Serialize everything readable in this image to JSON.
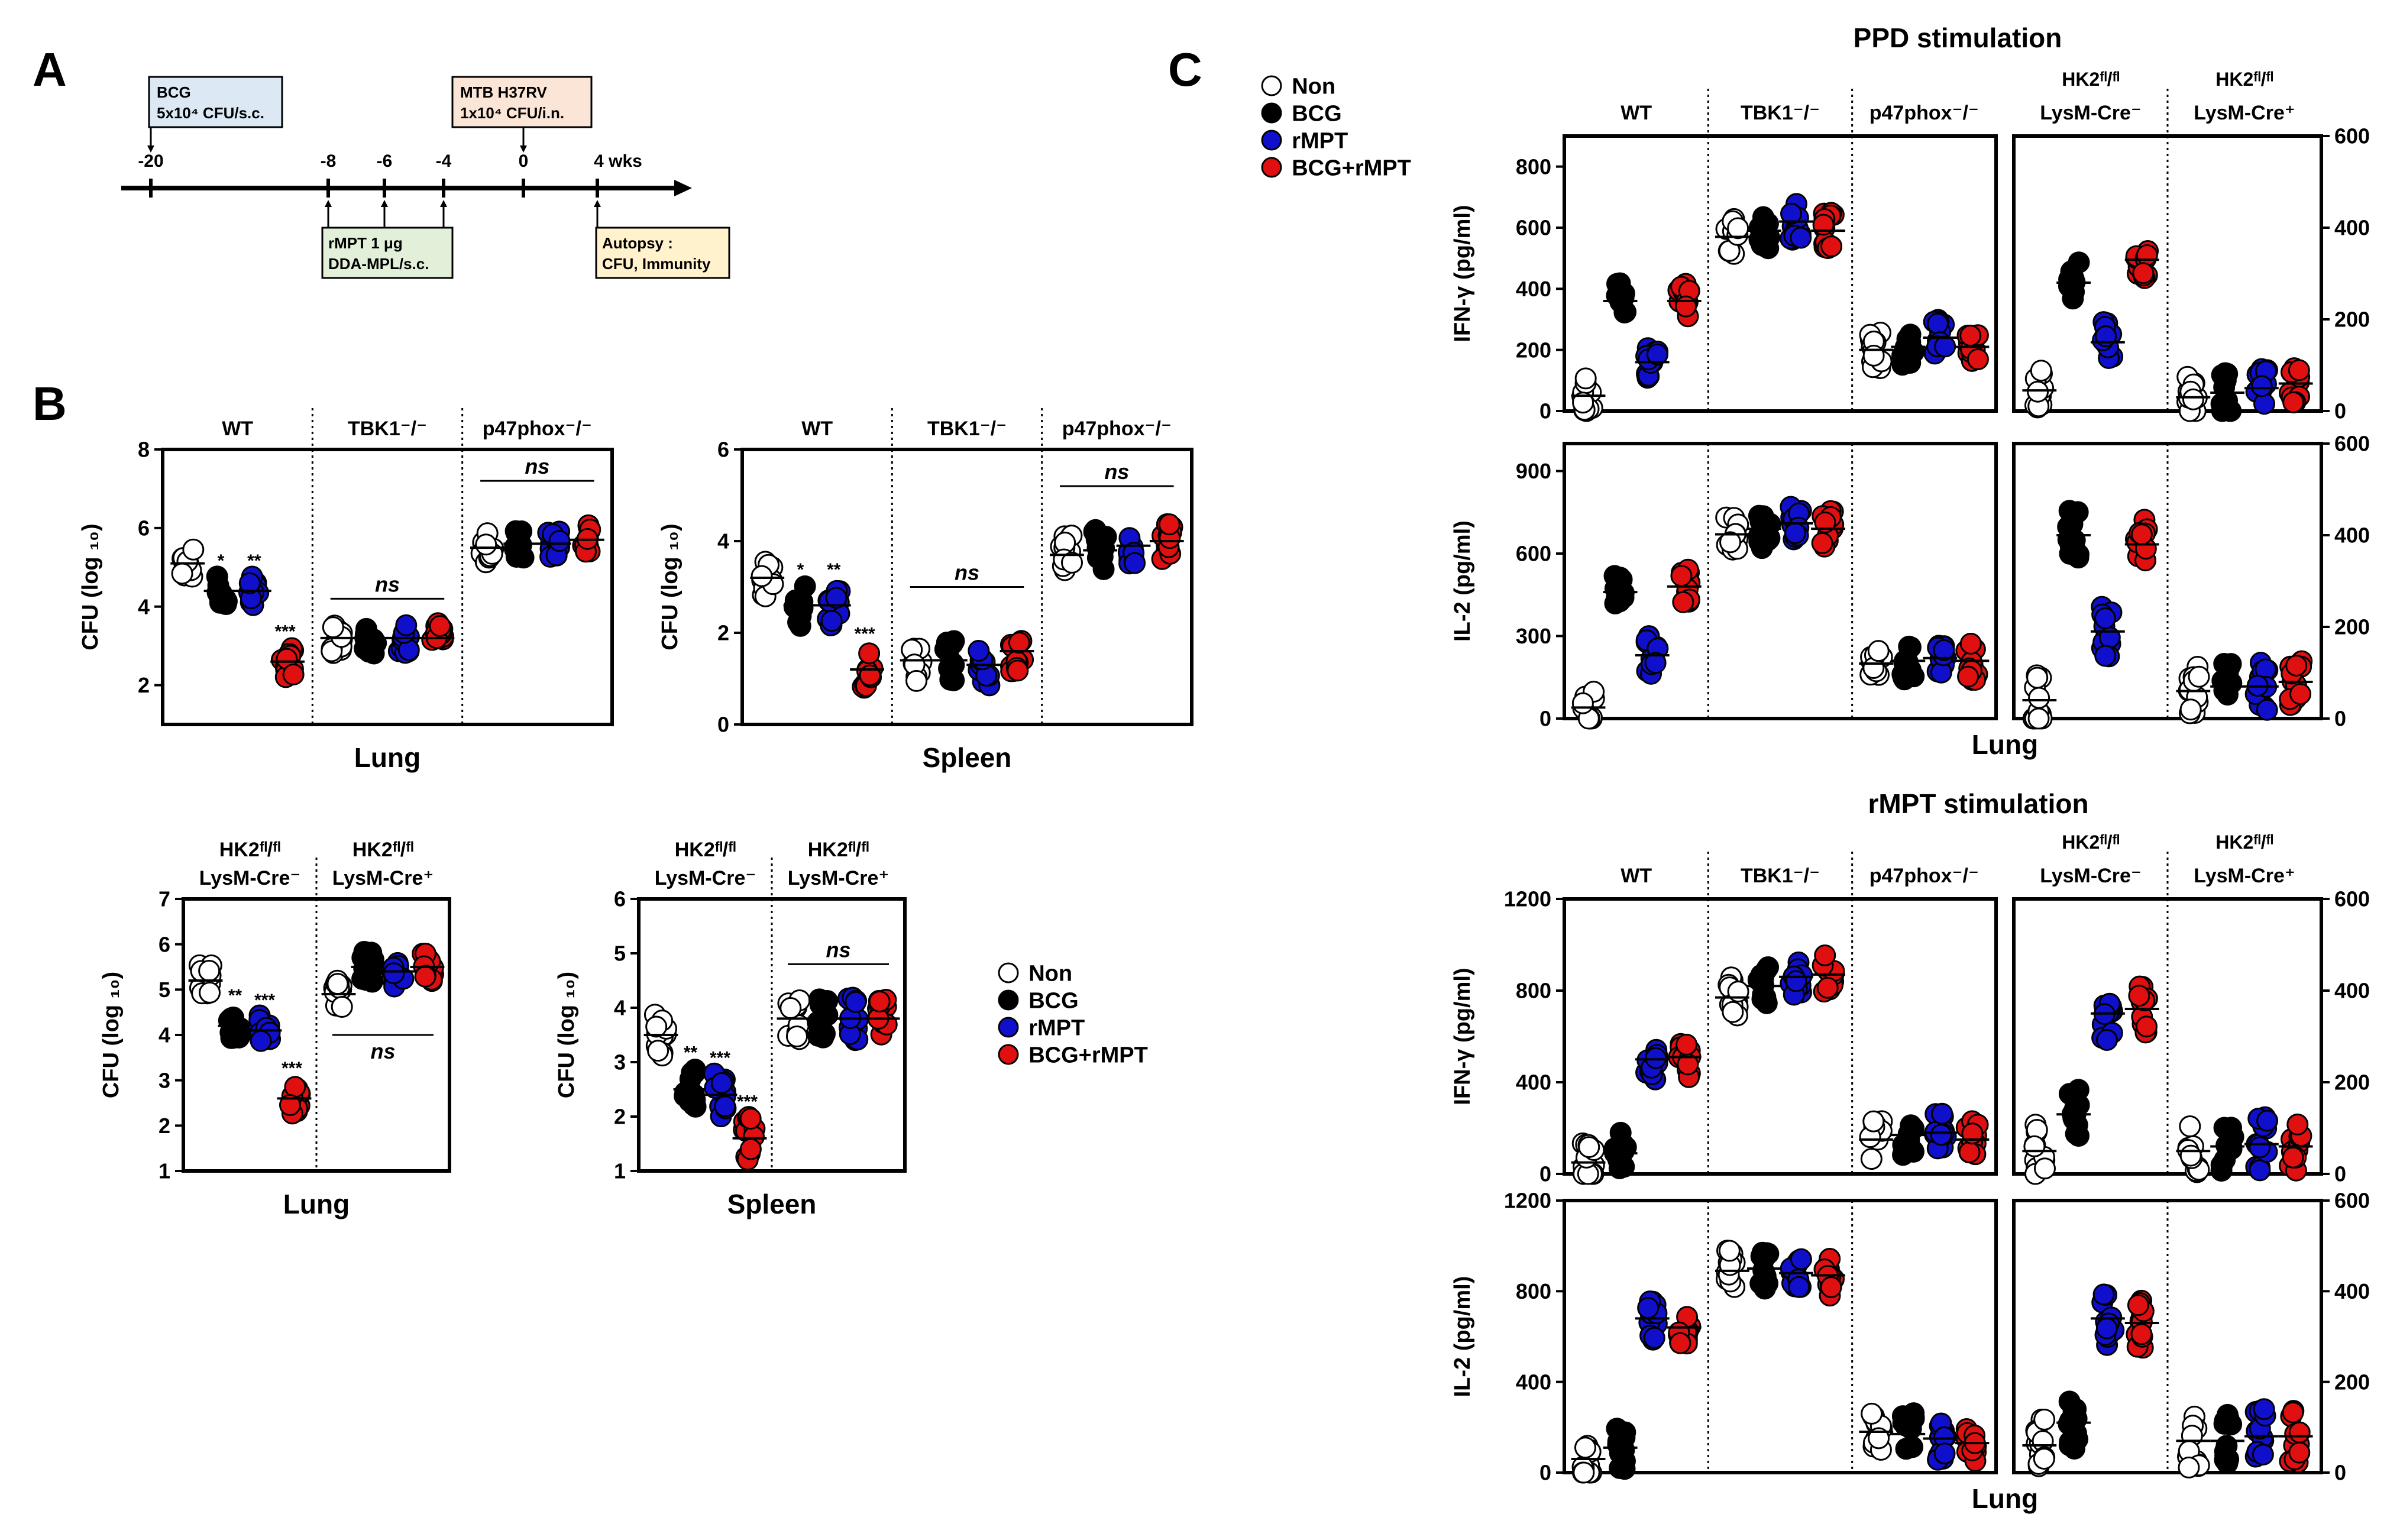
{
  "colors": {
    "non": "#ffffff",
    "bcg": "#000000",
    "rmpt": "#1010cc",
    "bcg_rmpt": "#e01010",
    "box_bcg": "#dce9f5",
    "box_rmpt": "#e2efd9",
    "box_mtb": "#fbe5d6",
    "box_autopsy": "#fff2cc"
  },
  "legend": [
    {
      "label": "Non",
      "key": "non"
    },
    {
      "label": "BCG",
      "key": "bcg"
    },
    {
      "label": "rMPT",
      "key": "rmpt"
    },
    {
      "label": "BCG+rMPT",
      "key": "bcg_rmpt"
    }
  ],
  "panelA": {
    "letter": "A",
    "ticks": [
      "-20",
      "-8",
      "-6",
      "-4",
      "0",
      "4 wks"
    ],
    "bcg_box": [
      "BCG",
      "5x10⁴ CFU/s.c."
    ],
    "rmpt_box": [
      "rMPT 1 μg",
      "DDA-MPL/s.c."
    ],
    "mtb_box": [
      "MTB H37RV",
      "1x10⁴ CFU/i.n."
    ],
    "autopsy_box": [
      "Autopsy :",
      "CFU, Immunity"
    ]
  },
  "panelB": {
    "letter": "B"
  },
  "panelC": {
    "letter": "C",
    "ppd_title": "PPD stimulation",
    "rmpt_title": "rMPT stimulation",
    "lung_label": "Lung"
  },
  "chart_data": [
    {
      "type": "scatter",
      "name": "B-lung-ko",
      "ylabel": "CFU (log ₁₀)",
      "xlabel": "Lung",
      "ylim": [
        1,
        8
      ],
      "yticks": [
        2,
        4,
        6,
        8
      ],
      "groups": [
        {
          "label": "WT"
        },
        {
          "label": "TBK1⁻/⁻"
        },
        {
          "label": "p47phox⁻/⁻"
        }
      ],
      "series": [
        "Non",
        "BCG",
        "rMPT",
        "BCG+rMPT"
      ],
      "means": [
        [
          5.1,
          4.4,
          4.4,
          2.6
        ],
        [
          3.2,
          3.2,
          3.2,
          3.2
        ],
        [
          5.5,
          5.6,
          5.6,
          5.7
        ]
      ],
      "spread": 0.8,
      "stars": [
        [
          "",
          "*",
          "**",
          "***"
        ],
        [
          "",
          "",
          "",
          ""
        ],
        [
          "",
          "",
          "",
          ""
        ]
      ],
      "ns_top": [
        {
          "text": "ns",
          "from": 1,
          "to": 1,
          "y": 4.2
        },
        {
          "text": "ns",
          "from": 2,
          "to": 2,
          "y": 7.2
        }
      ]
    },
    {
      "type": "scatter",
      "name": "B-spleen-ko",
      "ylabel": "CFU (log ₁₀)",
      "xlabel": "Spleen",
      "ylim": [
        0,
        6
      ],
      "yticks": [
        0,
        2,
        4,
        6
      ],
      "groups": [
        {
          "label": "WT"
        },
        {
          "label": "TBK1⁻/⁻"
        },
        {
          "label": "p47phox⁻/⁻"
        }
      ],
      "series": [
        "Non",
        "BCG",
        "rMPT",
        "BCG+rMPT"
      ],
      "means": [
        [
          3.2,
          2.6,
          2.6,
          1.2
        ],
        [
          1.4,
          1.4,
          1.3,
          1.6
        ],
        [
          3.7,
          3.8,
          3.9,
          4.0
        ]
      ],
      "spread": 0.9,
      "stars": [
        [
          "",
          "*",
          "**",
          "***"
        ],
        [
          "",
          "",
          "",
          ""
        ],
        [
          "",
          "",
          "",
          ""
        ]
      ],
      "ns_top": [
        {
          "text": "ns",
          "from": 1,
          "to": 1,
          "y": 3.0
        },
        {
          "text": "ns",
          "from": 2,
          "to": 2,
          "y": 5.2
        }
      ]
    },
    {
      "type": "scatter",
      "name": "B-lung-hk2",
      "ylabel": "CFU (log ₁₀)",
      "xlabel": "Lung",
      "ylim": [
        1,
        7
      ],
      "yticks": [
        1,
        2,
        3,
        4,
        5,
        6,
        7
      ],
      "groups": [
        {
          "label": "HK2ᶠˡ/ᶠˡ",
          "label2": "LysM-Cre⁻"
        },
        {
          "label": "HK2ᶠˡ/ᶠˡ",
          "label2": "LysM-Cre⁺"
        }
      ],
      "series": [
        "Non",
        "BCG",
        "rMPT",
        "BCG+rMPT"
      ],
      "means": [
        [
          5.2,
          4.2,
          4.1,
          2.6
        ],
        [
          4.9,
          5.5,
          5.4,
          5.5
        ]
      ],
      "spread": 0.7,
      "stars": [
        [
          "",
          "**",
          "***",
          "***"
        ],
        [
          "",
          "",
          "",
          ""
        ]
      ],
      "ns_top": [],
      "ns_bottom": [
        {
          "text": "ns",
          "from": 1,
          "to": 1,
          "y": 4.0
        }
      ]
    },
    {
      "type": "scatter",
      "name": "B-spleen-hk2",
      "ylabel": "CFU (log ₁₀)",
      "xlabel": "Spleen",
      "ylim": [
        1,
        6
      ],
      "yticks": [
        1,
        2,
        3,
        4,
        5,
        6
      ],
      "groups": [
        {
          "label": "HK2ᶠˡ/ᶠˡ",
          "label2": "LysM-Cre⁻"
        },
        {
          "label": "HK2ᶠˡ/ᶠˡ",
          "label2": "LysM-Cre⁺"
        }
      ],
      "series": [
        "Non",
        "BCG",
        "rMPT",
        "BCG+rMPT"
      ],
      "means": [
        [
          3.5,
          2.5,
          2.4,
          1.6
        ],
        [
          3.8,
          3.8,
          3.8,
          3.8
        ]
      ],
      "spread": 0.8,
      "stars": [
        [
          "",
          "**",
          "***",
          "***"
        ],
        [
          "",
          "",
          "",
          ""
        ]
      ],
      "ns_top": [
        {
          "text": "ns",
          "from": 1,
          "to": 1,
          "y": 4.8
        }
      ]
    },
    {
      "type": "scatter",
      "name": "C-ppd-ifng",
      "ylabel": "IFN-γ (pg/ml)",
      "ylim": [
        0,
        900
      ],
      "yticks": [
        0,
        200,
        400,
        600,
        800
      ],
      "ylim_right": [
        0,
        600
      ],
      "yticks_right": [
        0,
        200,
        400,
        600
      ],
      "groups": [
        {
          "label": "WT"
        },
        {
          "label": "TBK1⁻/⁻"
        },
        {
          "label": "p47phox⁻/⁻"
        }
      ],
      "groups_right": [
        {
          "label": "HK2ᶠˡ/ᶠˡ",
          "label2": "LysM-Cre⁻"
        },
        {
          "label": "HK2ᶠˡ/ᶠˡ",
          "label2": "LysM-Cre⁺"
        }
      ],
      "series": [
        "Non",
        "BCG",
        "rMPT",
        "BCG+rMPT"
      ],
      "means": [
        [
          50,
          360,
          160,
          360
        ],
        [
          570,
          590,
          620,
          590
        ],
        [
          200,
          210,
          240,
          210
        ]
      ],
      "means_right": [
        [
          45,
          280,
          150,
          330
        ],
        [
          30,
          40,
          50,
          60
        ]
      ],
      "spread": 120,
      "spread_right": 90
    },
    {
      "type": "scatter",
      "name": "C-ppd-il2",
      "ylabel": "IL-2  (pg/ml)",
      "xlabel": "Lung",
      "ylim": [
        0,
        1000
      ],
      "yticks": [
        0,
        300,
        600,
        900
      ],
      "ylim_right": [
        0,
        600
      ],
      "yticks_right": [
        0,
        200,
        400,
        600
      ],
      "groups": [],
      "groups_right": [],
      "series": [
        "Non",
        "BCG",
        "rMPT",
        "BCG+rMPT"
      ],
      "means": [
        [
          40,
          460,
          230,
          480
        ],
        [
          670,
          690,
          710,
          690
        ],
        [
          200,
          210,
          220,
          210
        ]
      ],
      "means_right": [
        [
          40,
          400,
          190,
          380
        ],
        [
          60,
          70,
          70,
          80
        ]
      ],
      "spread": 140,
      "spread_right": 110
    },
    {
      "type": "scatter",
      "name": "C-rmpt-ifng",
      "ylabel": "IFN-γ (pg/ml)",
      "ylim": [
        0,
        1200
      ],
      "yticks": [
        0,
        400,
        800,
        1200
      ],
      "ylim_right": [
        0,
        600
      ],
      "yticks_right": [
        0,
        200,
        400,
        600
      ],
      "groups": [
        {
          "label": "WT"
        },
        {
          "label": "TBK1⁻/⁻"
        },
        {
          "label": "p47phox⁻/⁻"
        }
      ],
      "groups_right": [
        {
          "label": "HK2ᶠˡ/ᶠˡ",
          "label2": "LysM-Cre⁻"
        },
        {
          "label": "HK2ᶠˡ/ᶠˡ",
          "label2": "LysM-Cre⁺"
        }
      ],
      "series": [
        "Non",
        "BCG",
        "rMPT",
        "BCG+rMPT"
      ],
      "means": [
        [
          50,
          90,
          500,
          510
        ],
        [
          770,
          820,
          860,
          870
        ],
        [
          150,
          170,
          180,
          150
        ]
      ],
      "means_right": [
        [
          50,
          130,
          350,
          360
        ],
        [
          50,
          60,
          65,
          60
        ]
      ],
      "spread": 180,
      "spread_right": 120
    },
    {
      "type": "scatter",
      "name": "C-rmpt-il2",
      "ylabel": "IL-2  (pg/ml)",
      "xlabel": "Lung",
      "ylim": [
        0,
        1200
      ],
      "yticks": [
        0,
        400,
        800,
        1200
      ],
      "ylim_right": [
        0,
        600
      ],
      "yticks_right": [
        0,
        200,
        400,
        600
      ],
      "groups": [],
      "groups_right": [],
      "series": [
        "Non",
        "BCG",
        "rMPT",
        "BCG+rMPT"
      ],
      "means": [
        [
          60,
          110,
          680,
          640
        ],
        [
          890,
          900,
          880,
          870
        ],
        [
          180,
          170,
          150,
          130
        ]
      ],
      "means_right": [
        [
          60,
          110,
          340,
          330
        ],
        [
          70,
          70,
          80,
          80
        ]
      ],
      "spread": 190,
      "spread_right": 120
    }
  ]
}
